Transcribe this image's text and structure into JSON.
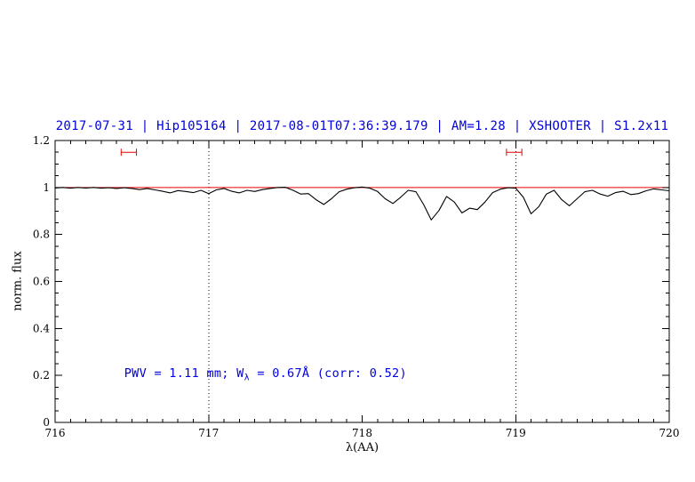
{
  "chart_data": {
    "type": "line",
    "title": "2017-07-31 | Hip105164 | 2017-08-01T07:36:39.179 | AM=1.28 | XSHOOTER | S1.2x11",
    "title_color": "#0000dd",
    "xlabel": "λ(AA)",
    "ylabel": "norm. flux",
    "xlim": [
      716,
      720
    ],
    "ylim": [
      0,
      1.2
    ],
    "grid": "off",
    "legend": "none",
    "xticks": {
      "values": [
        716,
        717,
        718,
        719,
        720
      ],
      "labels": [
        "716",
        "717",
        "718",
        "719",
        "720"
      ],
      "minor_step": 0.1
    },
    "yticks": {
      "values": [
        0,
        0.2,
        0.4,
        0.6,
        0.8,
        1.0,
        1.2
      ],
      "labels": [
        "0",
        "0.2",
        "0.4",
        "0.6",
        "0.8",
        "1",
        "1.2"
      ],
      "minor_step": 0.05
    },
    "vlines": [
      {
        "x": 717,
        "style": "dotted",
        "color": "#000000"
      },
      {
        "x": 719,
        "style": "dotted",
        "color": "#000000"
      }
    ],
    "continuum_line": {
      "y": 1.0,
      "color": "#e60000"
    },
    "range_markers": [
      {
        "x_center": 716.48,
        "x_half_width": 0.05,
        "y": 1.15,
        "color": "#e60000"
      },
      {
        "x_center": 718.99,
        "x_half_width": 0.05,
        "y": 1.15,
        "color": "#e60000"
      }
    ],
    "annotation": {
      "text_prefix": "PWV = 1.11 mm; W",
      "text_sub": "λ",
      "text_suffix": " = 0.67Å (corr: 0.52)",
      "x": 716.45,
      "y": 0.2,
      "color": "#0000dd"
    },
    "series": [
      {
        "name": "spectrum",
        "color": "#000000",
        "x": [
          716.0,
          716.05,
          716.1,
          716.15,
          716.2,
          716.25,
          716.3,
          716.35,
          716.4,
          716.45,
          716.5,
          716.55,
          716.6,
          716.65,
          716.7,
          716.75,
          716.8,
          716.85,
          716.9,
          716.95,
          717.0,
          717.05,
          717.1,
          717.15,
          717.2,
          717.25,
          717.3,
          717.35,
          717.4,
          717.45,
          717.5,
          717.55,
          717.6,
          717.65,
          717.7,
          717.75,
          717.8,
          717.85,
          717.9,
          717.95,
          718.0,
          718.05,
          718.1,
          718.15,
          718.2,
          718.25,
          718.3,
          718.35,
          718.4,
          718.45,
          718.5,
          718.55,
          718.6,
          718.65,
          718.7,
          718.75,
          718.8,
          718.85,
          718.9,
          718.95,
          719.0,
          719.05,
          719.1,
          719.15,
          719.2,
          719.25,
          719.3,
          719.35,
          719.4,
          719.45,
          719.5,
          719.55,
          719.6,
          719.65,
          719.7,
          719.75,
          719.8,
          719.85,
          719.9,
          719.95,
          720.0
        ],
        "y": [
          0.998,
          1.0,
          0.997,
          1.0,
          0.998,
          1.0,
          0.997,
          0.999,
          0.996,
          0.999,
          0.996,
          0.991,
          0.996,
          0.99,
          0.984,
          0.977,
          0.987,
          0.983,
          0.978,
          0.988,
          0.974,
          0.99,
          0.996,
          0.984,
          0.977,
          0.988,
          0.983,
          0.991,
          0.996,
          1.0,
          1.001,
          0.988,
          0.972,
          0.974,
          0.948,
          0.928,
          0.952,
          0.982,
          0.993,
          0.999,
          1.002,
          0.997,
          0.983,
          0.952,
          0.932,
          0.958,
          0.988,
          0.982,
          0.928,
          0.862,
          0.902,
          0.962,
          0.938,
          0.892,
          0.912,
          0.906,
          0.938,
          0.978,
          0.993,
          0.999,
          0.997,
          0.958,
          0.888,
          0.918,
          0.972,
          0.988,
          0.948,
          0.922,
          0.952,
          0.982,
          0.988,
          0.972,
          0.963,
          0.978,
          0.984,
          0.97,
          0.974,
          0.986,
          0.994,
          0.99,
          0.986
        ]
      }
    ]
  }
}
